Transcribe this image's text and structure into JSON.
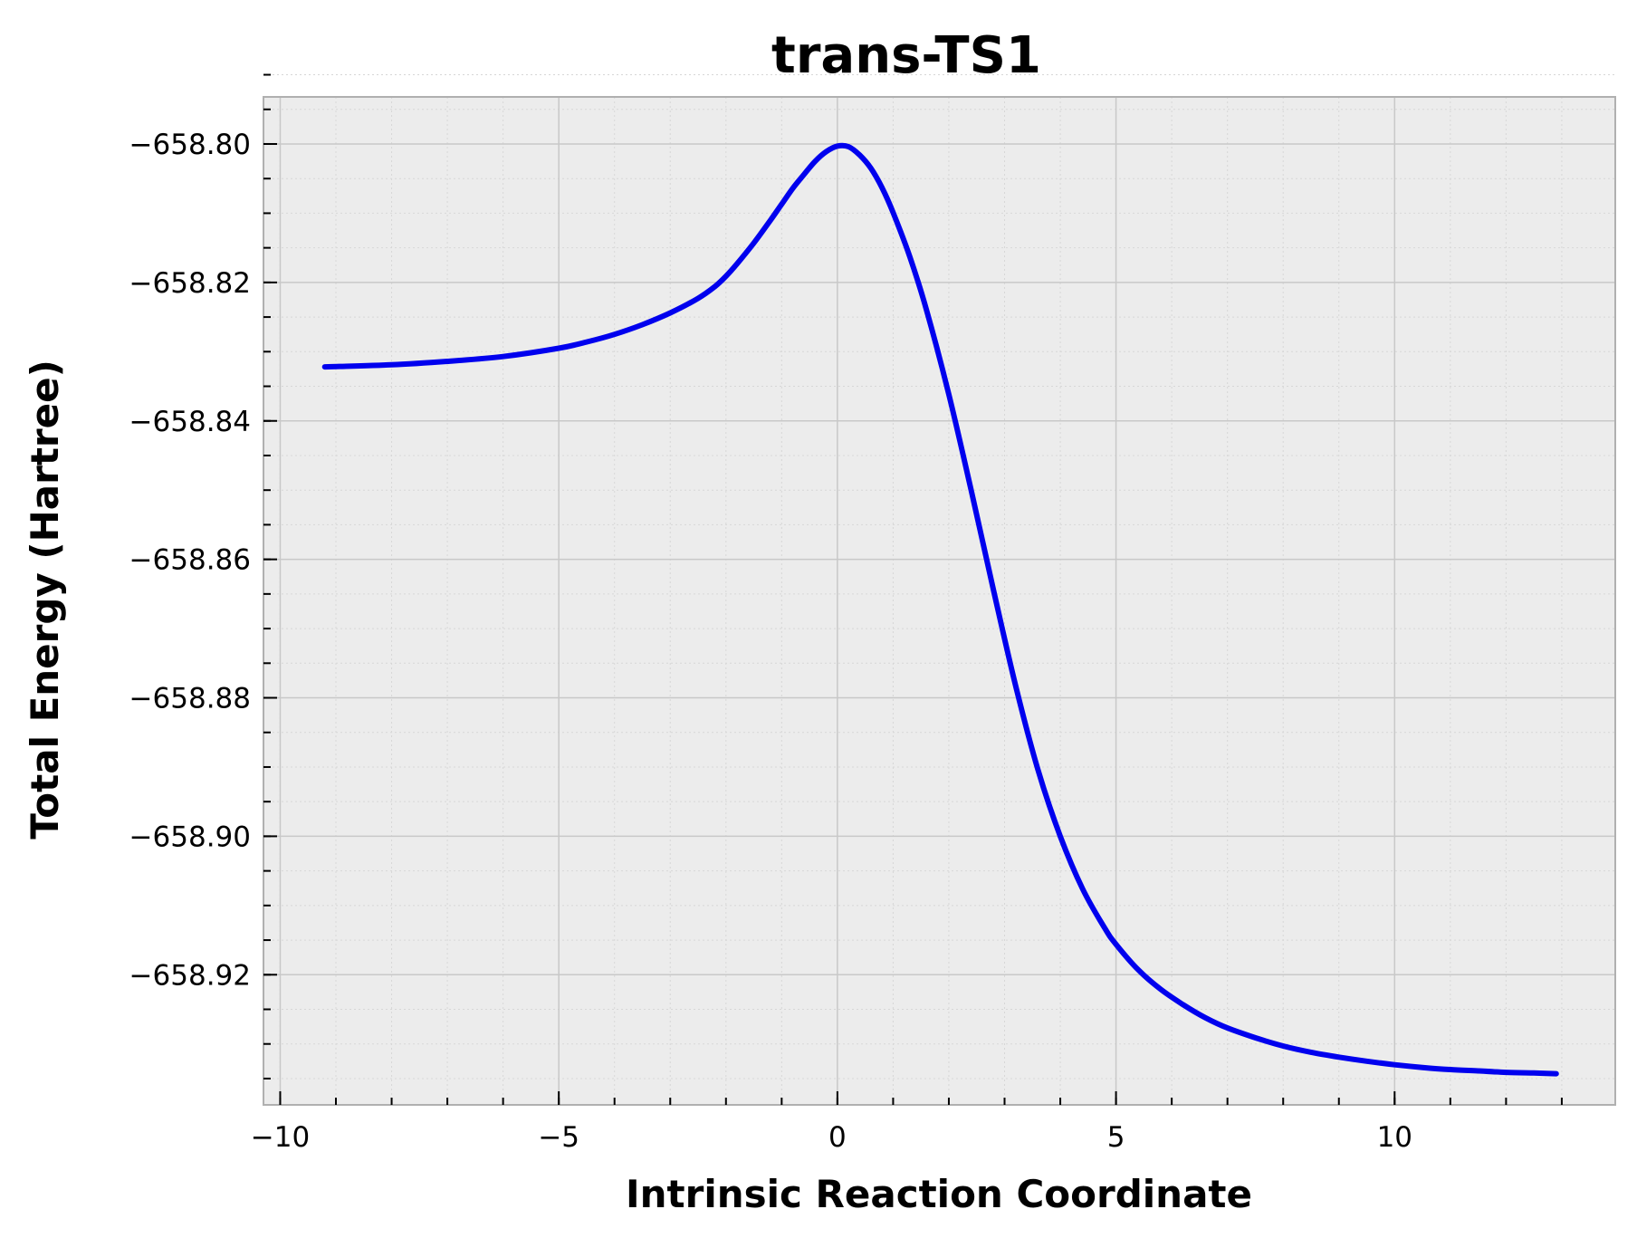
{
  "chart_data": {
    "type": "line",
    "title": "trans-TS1",
    "xlabel": "Intrinsic Reaction Coordinate",
    "ylabel": "Total Energy (Hartree)",
    "xlim": [
      -10.3,
      13.96
    ],
    "ylim": [
      -658.9388,
      -658.7932
    ],
    "xticks": [
      -10,
      -5,
      0,
      5,
      10
    ],
    "xtick_labels": [
      "−10",
      "−5",
      "0",
      "5",
      "10"
    ],
    "yticks": [
      -658.8,
      -658.82,
      -658.84,
      -658.86,
      -658.88,
      -658.9,
      -658.92
    ],
    "ytick_labels": [
      "−658.80",
      "−658.82",
      "−658.84",
      "−658.86",
      "−658.88",
      "−658.90",
      "−658.92"
    ],
    "grid": true,
    "colors": {
      "background": "#ececec",
      "line": "#0000ee",
      "grid": "#c8c8c8",
      "spine": "#b0b0b0"
    },
    "series": [
      {
        "x": [
          -9.2,
          -8.0,
          -7.0,
          -6.0,
          -5.0,
          -4.5,
          -4.0,
          -3.5,
          -3.0,
          -2.5,
          -2.2,
          -2.0,
          -1.8,
          -1.5,
          -1.2,
          -1.0,
          -0.8,
          -0.6,
          -0.4,
          -0.2,
          0.0,
          0.2,
          0.4,
          0.6,
          0.8,
          1.0,
          1.3,
          1.6,
          2.0,
          2.4,
          2.8,
          3.2,
          3.6,
          4.0,
          4.4,
          4.8,
          5.0,
          5.4,
          5.8,
          6.2,
          6.6,
          7.0,
          7.5,
          8.0,
          8.5,
          9.0,
          9.5,
          10.0,
          10.5,
          11.0,
          11.5,
          12.0,
          12.5,
          12.9
        ],
        "y": [
          -658.8322,
          -658.8319,
          -658.8314,
          -658.8307,
          -658.8295,
          -658.8286,
          -658.8275,
          -658.8261,
          -658.8244,
          -658.8223,
          -658.8206,
          -658.8191,
          -658.8173,
          -658.8143,
          -658.811,
          -658.8087,
          -658.8064,
          -658.8044,
          -658.8025,
          -658.8011,
          -658.8003,
          -658.8004,
          -658.8016,
          -658.8035,
          -658.8063,
          -658.8099,
          -658.8163,
          -658.824,
          -658.8362,
          -658.85,
          -658.8644,
          -658.8783,
          -658.8904,
          -658.9,
          -658.9076,
          -658.9133,
          -658.9156,
          -658.9193,
          -658.9221,
          -658.9243,
          -658.9262,
          -658.9277,
          -658.9291,
          -658.9303,
          -658.9312,
          -658.9319,
          -658.9325,
          -658.933,
          -658.9334,
          -658.9337,
          -658.9339,
          -658.9341,
          -658.9342,
          -658.9343
        ]
      }
    ]
  }
}
